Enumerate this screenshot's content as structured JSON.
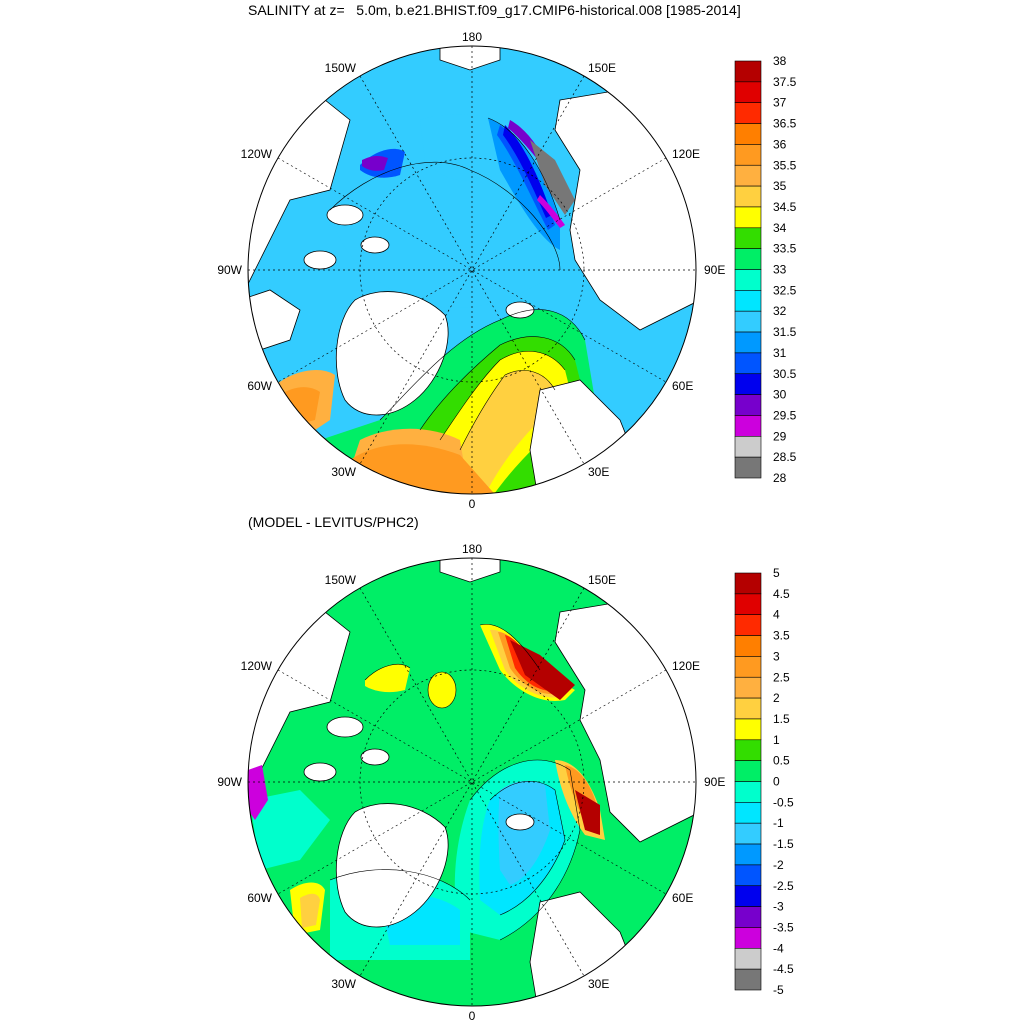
{
  "top_panel": {
    "title": "SALINITY at z=   5.0m, b.e21.BHIST.f09_g17.CMIP6-historical.008 [1985-2014]",
    "lon_labels": {
      "top": "180",
      "bottom": "0",
      "left": "90W",
      "right": "90E",
      "ul_inner": "150W",
      "ul_outer": "120W",
      "ur_inner": "150E",
      "ur_outer": "120E",
      "ll_outer": "60W",
      "ll_inner": "30W",
      "lr_outer": "60E",
      "lr_inner": "30E"
    },
    "colorbar": {
      "labels": [
        "38",
        "37.5",
        "37",
        "36.5",
        "36",
        "35.5",
        "35",
        "34.5",
        "34",
        "33.5",
        "33",
        "32.5",
        "32",
        "31.5",
        "31",
        "30.5",
        "30",
        "29.5",
        "29",
        "28.5",
        "28"
      ],
      "colors": [
        "#b40000",
        "#e00000",
        "#ff2a00",
        "#ff7f00",
        "#ff9a20",
        "#ffb040",
        "#ffd040",
        "#ffff00",
        "#33dd00",
        "#00ee66",
        "#00ffcc",
        "#00e6ff",
        "#33ccff",
        "#0099ff",
        "#0055ff",
        "#0000ee",
        "#7700cc",
        "#cc00dd",
        "#cccccc",
        "#777777"
      ]
    }
  },
  "bottom_panel": {
    "title": "(MODEL - LEVITUS/PHC2)",
    "lon_labels": {
      "top": "180",
      "bottom": "0",
      "left": "90W",
      "right": "90E",
      "ul_inner": "150W",
      "ul_outer": "120W",
      "ur_inner": "150E",
      "ur_outer": "120E",
      "ll_outer": "60W",
      "ll_inner": "30W",
      "lr_outer": "60E",
      "lr_inner": "30E"
    },
    "colorbar": {
      "labels": [
        "5",
        "4.5",
        "4",
        "3.5",
        "3",
        "2.5",
        "2",
        "1.5",
        "1",
        "0.5",
        "0",
        "-0.5",
        "-1",
        "-1.5",
        "-2",
        "-2.5",
        "-3",
        "-3.5",
        "-4",
        "-4.5",
        "-5"
      ],
      "colors": [
        "#b40000",
        "#e00000",
        "#ff2a00",
        "#ff7f00",
        "#ff9a20",
        "#ffb040",
        "#ffd040",
        "#ffff00",
        "#33dd00",
        "#00ee66",
        "#00ffcc",
        "#00e6ff",
        "#33ccff",
        "#0099ff",
        "#0055ff",
        "#0000ee",
        "#7700cc",
        "#cc00dd",
        "#cccccc",
        "#777777"
      ]
    }
  },
  "colors": {
    "land": "#ffffff",
    "coast": "#000000",
    "grid": "#000000"
  }
}
